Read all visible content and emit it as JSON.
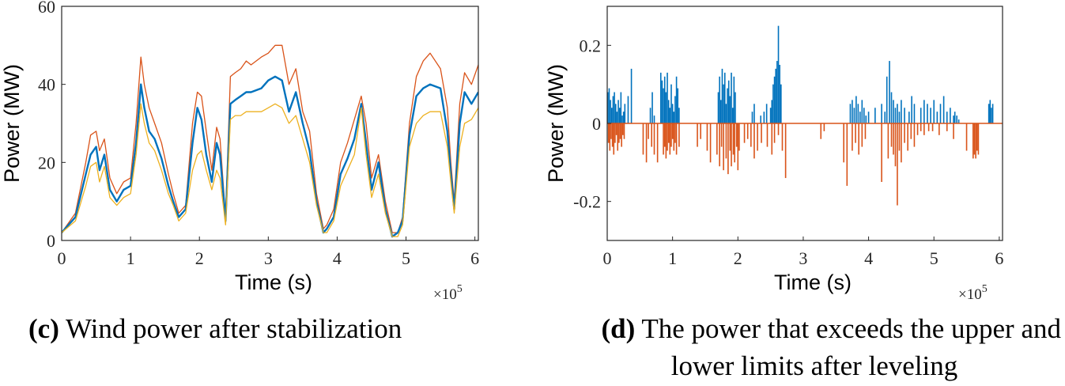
{
  "chart_data": [
    {
      "type": "line",
      "title": "",
      "xlabel": "Time (s)",
      "ylabel": "Power (MW)",
      "x_exponent_label": "×10",
      "x_exponent_power": "5",
      "xlim": [
        0,
        6.05
      ],
      "ylim": [
        0,
        60
      ],
      "xticks": [
        "0",
        "1",
        "2",
        "3",
        "4",
        "5",
        "6"
      ],
      "yticks": [
        "0",
        "20",
        "40",
        "60"
      ],
      "grid": false,
      "caption_tag": "(c)",
      "caption_text": "Wind power after stabilization",
      "series": [
        {
          "color": "#D95319",
          "x": [
            0,
            0.2,
            0.35,
            0.42,
            0.5,
            0.55,
            0.62,
            0.7,
            0.8,
            0.9,
            1.0,
            1.08,
            1.15,
            1.2,
            1.27,
            1.35,
            1.45,
            1.55,
            1.62,
            1.7,
            1.8,
            1.9,
            1.97,
            2.03,
            2.1,
            2.18,
            2.25,
            2.3,
            2.38,
            2.45,
            2.52,
            2.6,
            2.68,
            2.75,
            2.9,
            3.0,
            3.1,
            3.2,
            3.3,
            3.4,
            3.5,
            3.6,
            3.7,
            3.8,
            3.85,
            3.95,
            4.05,
            4.15,
            4.25,
            4.35,
            4.42,
            4.5,
            4.6,
            4.7,
            4.8,
            4.88,
            4.95,
            5.05,
            5.15,
            5.25,
            5.35,
            5.5,
            5.6,
            5.65,
            5.7,
            5.78,
            5.85,
            5.95,
            6.05
          ],
          "y": [
            2,
            7,
            20,
            27,
            28,
            23,
            26,
            16,
            12,
            15,
            16,
            30,
            47,
            40,
            34,
            30,
            25,
            17,
            12,
            7,
            9,
            30,
            38,
            37,
            28,
            18,
            29,
            26,
            6,
            42,
            43,
            44,
            46,
            45,
            47,
            48,
            50,
            50,
            40,
            44,
            33,
            28,
            12,
            3,
            4,
            8,
            20,
            25,
            31,
            37,
            30,
            16,
            22,
            10,
            2,
            2,
            6,
            30,
            42,
            46,
            48,
            44,
            34,
            20,
            10,
            35,
            43,
            40,
            45
          ]
        },
        {
          "color": "#0072BD",
          "x": [
            0,
            0.2,
            0.35,
            0.42,
            0.5,
            0.55,
            0.62,
            0.7,
            0.8,
            0.9,
            1.0,
            1.08,
            1.15,
            1.2,
            1.27,
            1.35,
            1.45,
            1.55,
            1.62,
            1.7,
            1.8,
            1.9,
            1.97,
            2.03,
            2.1,
            2.18,
            2.25,
            2.3,
            2.38,
            2.45,
            2.52,
            2.6,
            2.68,
            2.75,
            2.9,
            3.0,
            3.1,
            3.2,
            3.3,
            3.4,
            3.5,
            3.6,
            3.7,
            3.8,
            3.85,
            3.95,
            4.05,
            4.15,
            4.25,
            4.35,
            4.42,
            4.5,
            4.6,
            4.7,
            4.8,
            4.88,
            4.95,
            5.05,
            5.15,
            5.25,
            5.35,
            5.5,
            5.6,
            5.65,
            5.7,
            5.78,
            5.85,
            5.95,
            6.05
          ],
          "y": [
            2,
            6,
            17,
            22,
            24,
            18,
            22,
            13,
            10,
            13,
            14,
            25,
            40,
            34,
            28,
            26,
            21,
            14,
            10,
            6,
            8,
            25,
            34,
            31,
            22,
            15,
            25,
            22,
            5,
            35,
            36,
            37,
            38,
            38,
            39,
            41,
            42,
            41,
            33,
            38,
            30,
            23,
            10,
            2,
            3,
            6,
            17,
            21,
            26,
            35,
            25,
            13,
            20,
            8,
            1,
            2,
            5,
            27,
            37,
            39,
            40,
            39,
            28,
            17,
            8,
            30,
            38,
            35,
            38
          ]
        },
        {
          "color": "#EDB120",
          "x": [
            0,
            0.2,
            0.35,
            0.42,
            0.5,
            0.55,
            0.62,
            0.7,
            0.8,
            0.9,
            1.0,
            1.08,
            1.15,
            1.2,
            1.27,
            1.35,
            1.45,
            1.55,
            1.62,
            1.7,
            1.8,
            1.9,
            1.97,
            2.03,
            2.1,
            2.18,
            2.25,
            2.3,
            2.38,
            2.45,
            2.52,
            2.6,
            2.68,
            2.75,
            2.9,
            3.0,
            3.1,
            3.2,
            3.3,
            3.4,
            3.5,
            3.6,
            3.7,
            3.8,
            3.85,
            3.95,
            4.05,
            4.15,
            4.25,
            4.35,
            4.42,
            4.5,
            4.6,
            4.7,
            4.8,
            4.88,
            4.95,
            5.05,
            5.15,
            5.25,
            5.35,
            5.5,
            5.6,
            5.65,
            5.7,
            5.78,
            5.85,
            5.95,
            6.05
          ],
          "y": [
            2,
            5,
            14,
            19,
            20,
            15,
            19,
            11,
            9,
            11,
            12,
            22,
            35,
            30,
            25,
            23,
            18,
            12,
            9,
            5,
            7,
            18,
            22,
            23,
            18,
            13,
            18,
            16,
            4,
            31,
            32,
            32,
            33,
            33,
            33,
            34,
            35,
            34,
            30,
            32,
            26,
            20,
            9,
            2,
            2,
            5,
            14,
            18,
            22,
            34,
            22,
            11,
            17,
            7,
            1,
            1,
            4,
            24,
            30,
            32,
            33,
            33,
            24,
            15,
            7,
            24,
            30,
            31,
            34
          ]
        }
      ]
    },
    {
      "type": "bar",
      "title": "",
      "xlabel": "Time (s)",
      "ylabel": "Power (MW)",
      "x_exponent_label": "×10",
      "x_exponent_power": "5",
      "xlim": [
        0,
        6.05
      ],
      "ylim": [
        -0.3,
        0.3
      ],
      "xticks": [
        "0",
        "1",
        "2",
        "3",
        "4",
        "5",
        "6"
      ],
      "yticks": [
        "-0.2",
        "0",
        "0.2"
      ],
      "ytick_values": [
        -0.2,
        0,
        0.2
      ],
      "grid": false,
      "caption_tag": "(d)",
      "caption_line1": "The power that exceeds the upper and",
      "caption_line2": "lower limits after leveling",
      "series": [
        {
          "color": "#0072BD",
          "x": [
            0.01,
            0.03,
            0.05,
            0.07,
            0.09,
            0.11,
            0.13,
            0.15,
            0.17,
            0.19,
            0.21,
            0.23,
            0.25,
            0.27,
            0.32,
            0.37,
            0.66,
            0.69,
            0.72,
            0.82,
            0.84,
            0.86,
            0.88,
            0.9,
            0.92,
            0.94,
            0.96,
            0.98,
            1.0,
            1.02,
            1.04,
            1.06,
            1.08,
            1.1,
            1.7,
            1.72,
            1.74,
            1.76,
            1.78,
            1.8,
            1.82,
            1.84,
            1.86,
            1.88,
            1.9,
            1.92,
            1.94,
            1.96,
            2.22,
            2.25,
            2.35,
            2.4,
            2.44,
            2.5,
            2.52,
            2.54,
            2.56,
            2.58,
            2.6,
            2.62,
            2.64,
            2.66,
            3.72,
            3.75,
            3.78,
            3.81,
            3.84,
            3.87,
            3.9,
            3.93,
            3.96,
            4.0,
            4.1,
            4.2,
            4.25,
            4.28,
            4.32,
            4.35,
            4.38,
            4.41,
            4.44,
            4.47,
            4.5,
            4.55,
            4.62,
            4.66,
            4.7,
            4.8,
            4.85,
            4.9,
            4.95,
            5.0,
            5.05,
            5.1,
            5.15,
            5.2,
            5.25,
            5.3,
            5.32,
            5.35,
            5.38,
            5.84,
            5.86,
            5.88,
            5.9
          ],
          "y": [
            0.08,
            0.09,
            0.06,
            0.04,
            0.07,
            0.08,
            0.05,
            0.03,
            0.06,
            0.04,
            0.08,
            0.02,
            0.03,
            0.05,
            0.07,
            0.14,
            0.04,
            0.08,
            0.02,
            0.13,
            0.11,
            0.09,
            0.12,
            0.08,
            0.13,
            0.06,
            0.04,
            0.1,
            0.05,
            0.03,
            0.07,
            0.12,
            0.09,
            0.04,
            0.08,
            0.12,
            0.06,
            0.14,
            0.1,
            0.13,
            0.05,
            0.09,
            0.11,
            0.07,
            0.13,
            0.04,
            0.12,
            0.08,
            0.03,
            0.05,
            0.02,
            0.03,
            0.05,
            0.04,
            0.06,
            0.1,
            0.12,
            0.14,
            0.16,
            0.25,
            0.15,
            0.1,
            0.05,
            0.06,
            0.04,
            0.07,
            0.05,
            0.03,
            0.06,
            0.04,
            0.02,
            0.03,
            0.04,
            0.05,
            0.03,
            0.12,
            0.16,
            0.08,
            0.06,
            0.04,
            0.05,
            0.03,
            0.06,
            0.04,
            0.03,
            0.07,
            0.05,
            0.04,
            0.06,
            0.05,
            0.04,
            0.06,
            0.03,
            0.05,
            0.07,
            0.03,
            0.04,
            0.02,
            0.03,
            0.02,
            0.01,
            0.05,
            0.06,
            0.04,
            0.05
          ]
        },
        {
          "color": "#D95319",
          "x": [
            0.02,
            0.04,
            0.06,
            0.08,
            0.1,
            0.12,
            0.14,
            0.16,
            0.18,
            0.2,
            0.22,
            0.24,
            0.26,
            0.55,
            0.6,
            0.63,
            0.68,
            0.72,
            0.77,
            0.86,
            0.88,
            0.9,
            0.92,
            0.94,
            0.96,
            0.98,
            1.0,
            1.02,
            1.04,
            1.06,
            1.1,
            1.38,
            1.43,
            1.53,
            1.58,
            1.68,
            1.72,
            1.75,
            1.78,
            1.82,
            1.85,
            1.88,
            1.9,
            1.93,
            1.95,
            1.98,
            2.0,
            2.02,
            2.1,
            2.15,
            2.2,
            2.25,
            2.3,
            2.36,
            2.45,
            2.52,
            2.56,
            2.62,
            2.68,
            2.73,
            3.27,
            3.32,
            3.62,
            3.67,
            3.75,
            3.8,
            3.85,
            3.9,
            3.95,
            4.2,
            4.3,
            4.35,
            4.38,
            4.41,
            4.44,
            4.47,
            4.5,
            4.55,
            4.6,
            4.65,
            4.7,
            4.75,
            4.8,
            4.85,
            4.92,
            4.98,
            5.08,
            5.2,
            5.3,
            5.5,
            5.6,
            5.62,
            5.64,
            5.66,
            5.68
          ],
          "y": [
            -0.05,
            -0.07,
            -0.04,
            -0.06,
            -0.08,
            -0.05,
            -0.03,
            -0.07,
            -0.05,
            -0.04,
            -0.06,
            -0.03,
            -0.04,
            -0.08,
            -0.1,
            -0.04,
            -0.06,
            -0.08,
            -0.1,
            -0.08,
            -0.06,
            -0.09,
            -0.07,
            -0.05,
            -0.08,
            -0.06,
            -0.04,
            -0.07,
            -0.05,
            -0.08,
            -0.06,
            -0.06,
            -0.04,
            -0.07,
            -0.1,
            -0.08,
            -0.11,
            -0.06,
            -0.12,
            -0.09,
            -0.13,
            -0.07,
            -0.11,
            -0.08,
            -0.1,
            -0.06,
            -0.12,
            -0.07,
            -0.05,
            -0.04,
            -0.06,
            -0.09,
            -0.07,
            -0.05,
            -0.06,
            -0.08,
            -0.05,
            -0.03,
            -0.07,
            -0.14,
            -0.04,
            -0.02,
            -0.1,
            -0.16,
            -0.07,
            -0.05,
            -0.08,
            -0.06,
            -0.04,
            -0.15,
            -0.09,
            -0.06,
            -0.08,
            -0.11,
            -0.21,
            -0.07,
            -0.1,
            -0.05,
            -0.07,
            -0.04,
            -0.06,
            -0.03,
            -0.02,
            -0.03,
            -0.02,
            -0.02,
            -0.03,
            -0.02,
            -0.04,
            -0.07,
            -0.09,
            -0.08,
            -0.09,
            -0.07,
            -0.08
          ]
        }
      ]
    }
  ]
}
